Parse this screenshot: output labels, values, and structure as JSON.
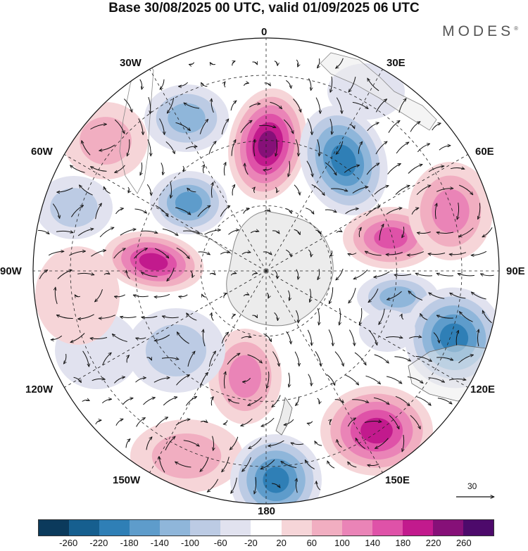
{
  "title": "Base 30/08/2025 00 UTC, valid 01/09/2025 06 UTC",
  "brand": "MODES",
  "brand_mark": "®",
  "longitude_labels": {
    "lon_0": "0",
    "lon_30e": "30E",
    "lon_60e": "60E",
    "lon_90e": "90E",
    "lon_120e": "120E",
    "lon_150e": "150E",
    "lon_180": "180",
    "lon_150w": "150W",
    "lon_120w": "120W",
    "lon_90w": "90W",
    "lon_60w": "60W",
    "lon_30w": "30W"
  },
  "reference_vector": "30",
  "colorbar": {
    "ticks": [
      "-260",
      "-220",
      "-180",
      "-140",
      "-100",
      "-60",
      "-20",
      "20",
      "60",
      "100",
      "140",
      "180",
      "220",
      "260"
    ],
    "colors": [
      "#0b3a5c",
      "#165f8f",
      "#2f7fb6",
      "#5e9ccb",
      "#8fb6da",
      "#bccbe4",
      "#e1e2ef",
      "#ffffff",
      "#f6d5d8",
      "#f1aec1",
      "#ea84b7",
      "#df52a8",
      "#c21a8d",
      "#861078",
      "#4d0a6b"
    ]
  },
  "colors": {
    "land": "#ececec",
    "background": "#ffffff"
  }
}
